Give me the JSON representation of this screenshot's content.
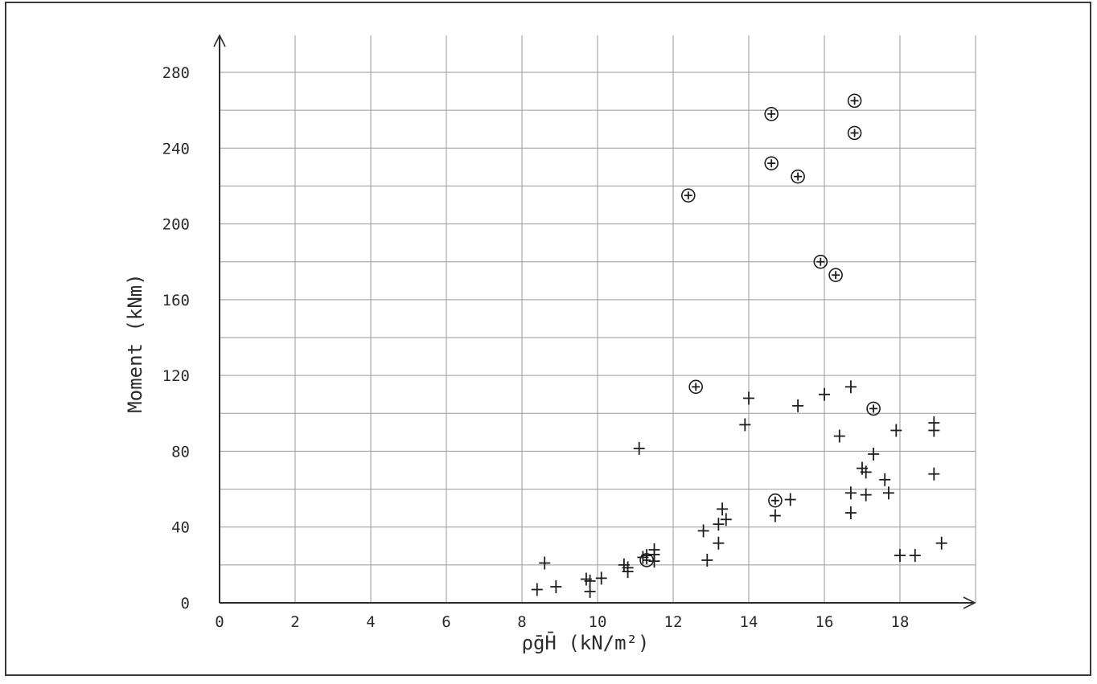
{
  "chart_data": {
    "type": "scatter",
    "title": "",
    "xlabel": "ρ̄gH̄  (kN/m²)",
    "ylabel": "Moment  (kNm)",
    "xlim": [
      0,
      20
    ],
    "ylim": [
      0,
      280
    ],
    "grid": true,
    "x_ticks": [
      0,
      2,
      4,
      6,
      8,
      10,
      12,
      14,
      16,
      18
    ],
    "x_tick_labels": [
      "0",
      "2",
      "4",
      "6",
      "8",
      "10",
      "12",
      "14",
      "16",
      "18"
    ],
    "y_ticks": [
      0,
      40,
      80,
      120,
      160,
      200,
      240,
      280
    ],
    "y_tick_labels": [
      "0",
      "40",
      "80",
      "120",
      "160",
      "200",
      "240",
      "280"
    ],
    "x_grid": [
      0,
      2,
      4,
      6,
      8,
      10,
      12,
      14,
      16,
      18,
      20
    ],
    "y_grid": [
      0,
      20,
      40,
      60,
      80,
      100,
      120,
      140,
      160,
      180,
      200,
      220,
      240,
      260,
      280
    ],
    "series": [
      {
        "marker": "plus",
        "points": [
          [
            8.4,
            7
          ],
          [
            8.6,
            21
          ],
          [
            8.9,
            8.5
          ],
          [
            9.7,
            12.5
          ],
          [
            9.8,
            11.5
          ],
          [
            9.8,
            6
          ],
          [
            10.1,
            13
          ],
          [
            10.7,
            20
          ],
          [
            10.8,
            16.5
          ],
          [
            10.8,
            18.5
          ],
          [
            11.1,
            81.5
          ],
          [
            11.2,
            24
          ],
          [
            11.3,
            25
          ],
          [
            11.5,
            22
          ],
          [
            11.5,
            25.5
          ],
          [
            11.5,
            28
          ],
          [
            12.8,
            38
          ],
          [
            12.9,
            22.5
          ],
          [
            13.2,
            31.5
          ],
          [
            13.2,
            41.5
          ],
          [
            13.3,
            49.5
          ],
          [
            13.4,
            44
          ],
          [
            13.9,
            94
          ],
          [
            14.0,
            108
          ],
          [
            14.7,
            46
          ],
          [
            15.1,
            54.5
          ],
          [
            15.3,
            104
          ],
          [
            16.0,
            110
          ],
          [
            16.4,
            88
          ],
          [
            16.7,
            114
          ],
          [
            16.7,
            47.5
          ],
          [
            16.7,
            58
          ],
          [
            17.0,
            71
          ],
          [
            17.1,
            57
          ],
          [
            17.1,
            69
          ],
          [
            17.3,
            78.5
          ],
          [
            17.6,
            65
          ],
          [
            17.7,
            58
          ],
          [
            17.9,
            91
          ],
          [
            18.0,
            25
          ],
          [
            18.4,
            25
          ],
          [
            18.9,
            95
          ],
          [
            18.9,
            91
          ],
          [
            18.9,
            68
          ],
          [
            19.1,
            31.5
          ]
        ]
      },
      {
        "marker": "circled-plus",
        "points": [
          [
            11.3,
            22.5
          ],
          [
            12.4,
            215
          ],
          [
            12.6,
            114
          ],
          [
            14.6,
            258
          ],
          [
            14.6,
            232
          ],
          [
            14.7,
            54
          ],
          [
            15.3,
            225
          ],
          [
            15.9,
            180
          ],
          [
            16.3,
            173
          ],
          [
            16.8,
            265
          ],
          [
            16.8,
            248
          ],
          [
            17.3,
            102.5
          ]
        ]
      }
    ]
  }
}
